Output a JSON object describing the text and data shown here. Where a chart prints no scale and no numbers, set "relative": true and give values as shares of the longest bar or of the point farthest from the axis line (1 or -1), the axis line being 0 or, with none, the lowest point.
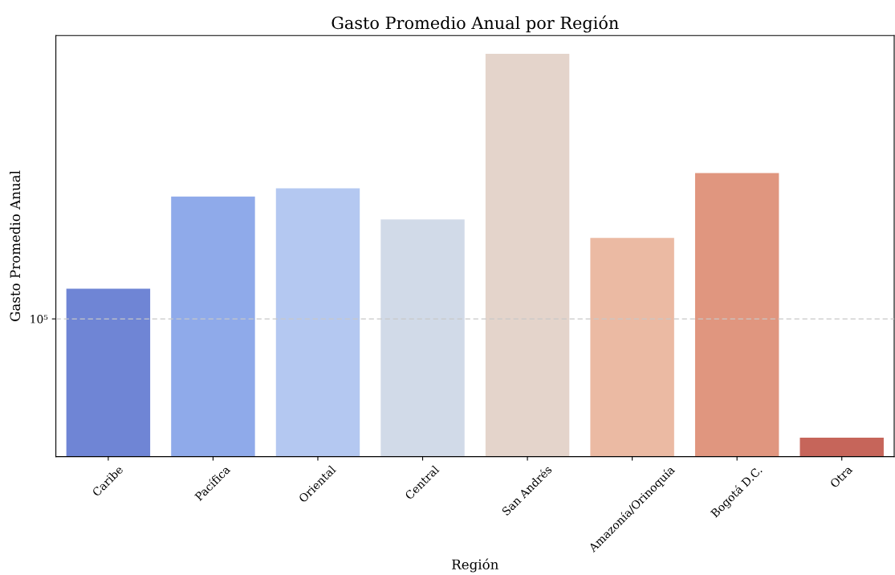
{
  "chart_data": {
    "type": "bar",
    "title": "Gasto Promedio Anual por Región",
    "xlabel": "Región",
    "ylabel": "Gasto Promedio Anual",
    "categories": [
      "Caribe",
      "Pacífica",
      "Oriental",
      "Central",
      "San Andrés",
      "Amazonía/Orinoquía",
      "Bogotá D.C.",
      "Otra"
    ],
    "values": [
      0.417,
      0.646,
      0.666,
      0.589,
      1,
      0.543,
      0.704,
      0.047
    ],
    "colors": [
      "#6f85d5",
      "#8faaea",
      "#b4c8f1",
      "#d1dae8",
      "#e4d4cb",
      "#ebbaa3",
      "#e0967f",
      "#c6655a"
    ],
    "relative": true,
    "ref_lines": [
      {
        "axis": "y",
        "value": 0.342,
        "label": "10⁵",
        "color": "#c8c8c8",
        "line_style": "dashed"
      }
    ],
    "grid": false,
    "legend": false
  }
}
